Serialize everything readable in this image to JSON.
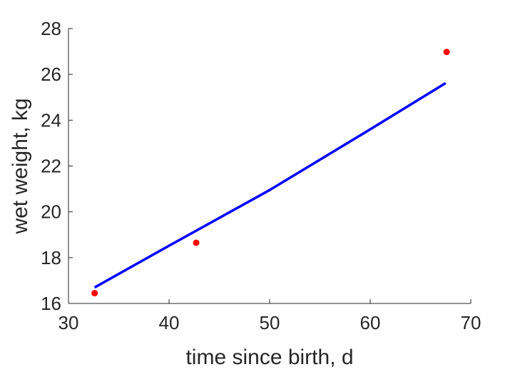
{
  "chart_data": {
    "type": "scatter",
    "title": "",
    "xlabel": "time since birth, d",
    "ylabel": "wet weight, kg",
    "xlim": [
      30,
      70
    ],
    "ylim": [
      16,
      28
    ],
    "xticks": [
      30,
      40,
      50,
      60,
      70
    ],
    "yticks": [
      16,
      18,
      20,
      22,
      24,
      26,
      28
    ],
    "grid": false,
    "legend": null,
    "series": [
      {
        "kind": "scatter",
        "color": "#ff0000",
        "points": [
          {
            "x": 32.6,
            "y": 16.45
          },
          {
            "x": 42.7,
            "y": 18.65
          },
          {
            "x": 67.6,
            "y": 26.98
          }
        ]
      },
      {
        "kind": "line",
        "color": "#0000ff",
        "points": [
          {
            "x": 32.6,
            "y": 16.7
          },
          {
            "x": 40.0,
            "y": 18.52
          },
          {
            "x": 50.0,
            "y": 20.95
          },
          {
            "x": 60.0,
            "y": 23.6
          },
          {
            "x": 67.5,
            "y": 25.62
          }
        ]
      }
    ]
  }
}
